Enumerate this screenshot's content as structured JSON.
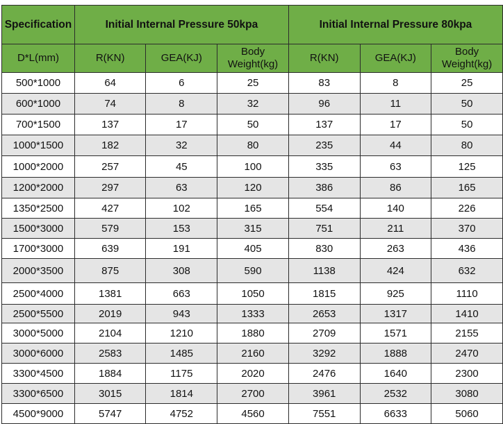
{
  "header": {
    "spec_label": "Specification",
    "group_50": "Initial Internal Pressure  50kpa",
    "group_80": "Initial Internal Pressure  80kpa"
  },
  "columns": [
    "D*L(mm)",
    "R(KN)",
    "GEA(KJ)",
    "Body Weight(kg)",
    "R(KN)",
    "GEA(KJ)",
    "Body Weight(kg)"
  ],
  "rows": [
    [
      "500*1000",
      "64",
      "6",
      "25",
      "83",
      "8",
      "25"
    ],
    [
      "600*1000",
      "74",
      "8",
      "32",
      "96",
      "11",
      "50"
    ],
    [
      "700*1500",
      "137",
      "17",
      "50",
      "137",
      "17",
      "50"
    ],
    [
      "1000*1500",
      "182",
      "32",
      "80",
      "235",
      "44",
      "80"
    ],
    [
      "1000*2000",
      "257",
      "45",
      "100",
      "335",
      "63",
      "125"
    ],
    [
      "1200*2000",
      "297",
      "63",
      "120",
      "386",
      "86",
      "165"
    ],
    [
      "1350*2500",
      "427",
      "102",
      "165",
      "554",
      "140",
      "226"
    ],
    [
      "1500*3000",
      "579",
      "153",
      "315",
      "751",
      "211",
      "370"
    ],
    [
      "1700*3000",
      "639",
      "191",
      "405",
      "830",
      "263",
      "436"
    ],
    [
      "2000*3500",
      "875",
      "308",
      "590",
      "1138",
      "424",
      "632"
    ],
    [
      "2500*4000",
      "1381",
      "663",
      "1050",
      "1815",
      "925",
      "1110"
    ],
    [
      "2500*5500",
      "2019",
      "943",
      "1333",
      "2653",
      "1317",
      "1410"
    ],
    [
      "3000*5000",
      "2104",
      "1210",
      "1880",
      "2709",
      "1571",
      "2155"
    ],
    [
      "3000*6000",
      "2583",
      "1485",
      "2160",
      "3292",
      "1888",
      "2470"
    ],
    [
      "3300*4500",
      "1884",
      "1175",
      "2020",
      "2476",
      "1640",
      "2300"
    ],
    [
      "3300*6500",
      "3015",
      "1814",
      "2700",
      "3961",
      "2532",
      "3080"
    ],
    [
      "4500*9000",
      "5747",
      "4752",
      "4560",
      "7551",
      "6633",
      "5060"
    ]
  ]
}
